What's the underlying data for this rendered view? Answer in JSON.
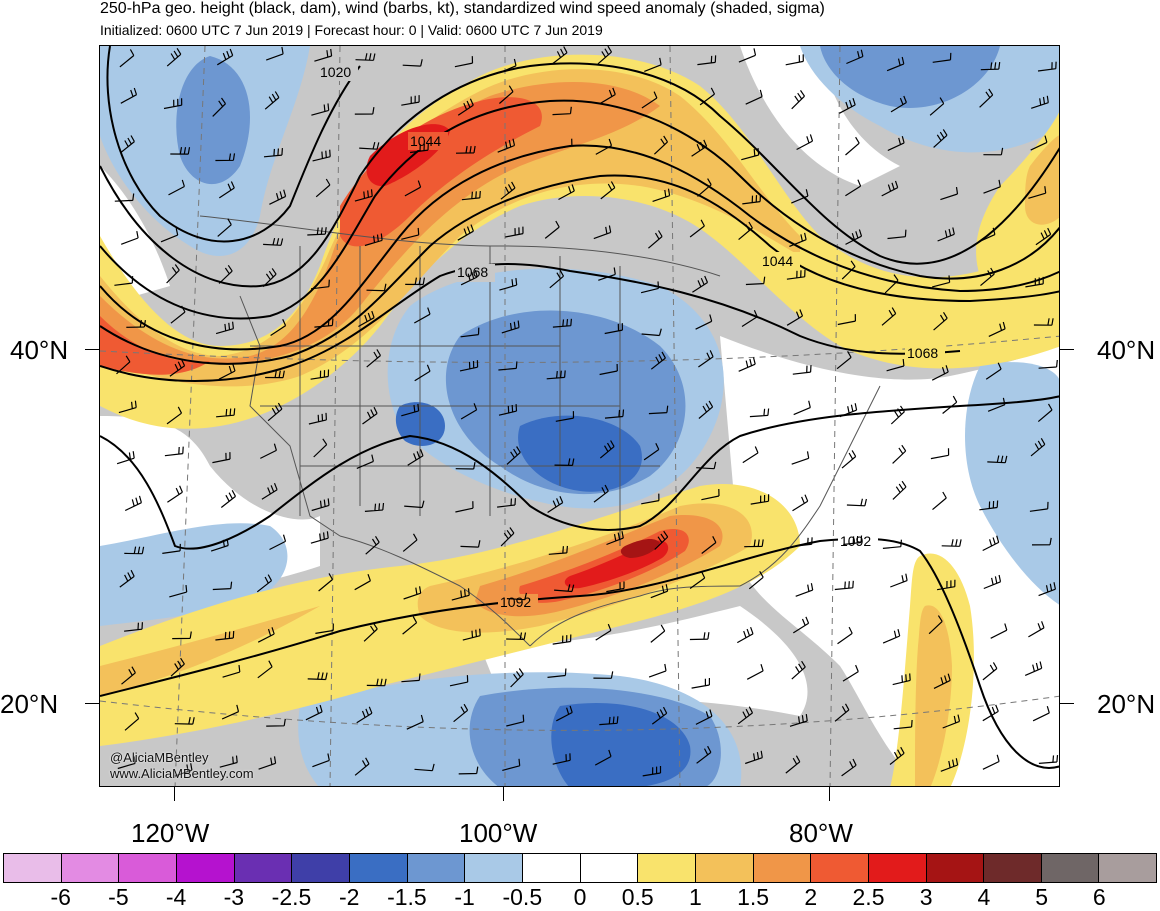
{
  "header": {
    "title": "250-hPa geo. height (black, dam), wind (barbs, kt), standardized wind speed anomaly (shaded, sigma)",
    "subtitle": "Initialized: 0600 UTC 7 Jun 2019 | Forecast hour: 0 | Valid: 0600 UTC 7 Jun 2019"
  },
  "map": {
    "lat_labels": [
      "40°N",
      "20°N"
    ],
    "lon_labels": [
      "120°W",
      "100°W",
      "80°W"
    ],
    "contour_labels": [
      "1020",
      "1044",
      "1044",
      "1068",
      "1068",
      "1092",
      "1092"
    ],
    "credits": [
      "@AliciaMBentley",
      "www.AliciaMBentley.com"
    ]
  },
  "colorbar": {
    "labels": [
      "-6",
      "-5",
      "-4",
      "-3",
      "-2.5",
      "-2",
      "-1.5",
      "-1",
      "-0.5",
      "0",
      "0.5",
      "1",
      "1.5",
      "2",
      "2.5",
      "3",
      "4",
      "5",
      "6"
    ],
    "colors": [
      "#e9bde9",
      "#e38be3",
      "#d95bd9",
      "#b512cf",
      "#6a2fb2",
      "#3f3fa8",
      "#3a6ec3",
      "#6d97d1",
      "#a9c9e7",
      "#ffffff",
      "#ffffff",
      "#f9e36c",
      "#f3c15a",
      "#f09648",
      "#ef5a33",
      "#e21b1b",
      "#a51414",
      "#6e2a2a",
      "#6f6666",
      "#a89d9d"
    ]
  },
  "colors": {
    "land_gray": "#c8c8c8",
    "contour": "#000000"
  }
}
